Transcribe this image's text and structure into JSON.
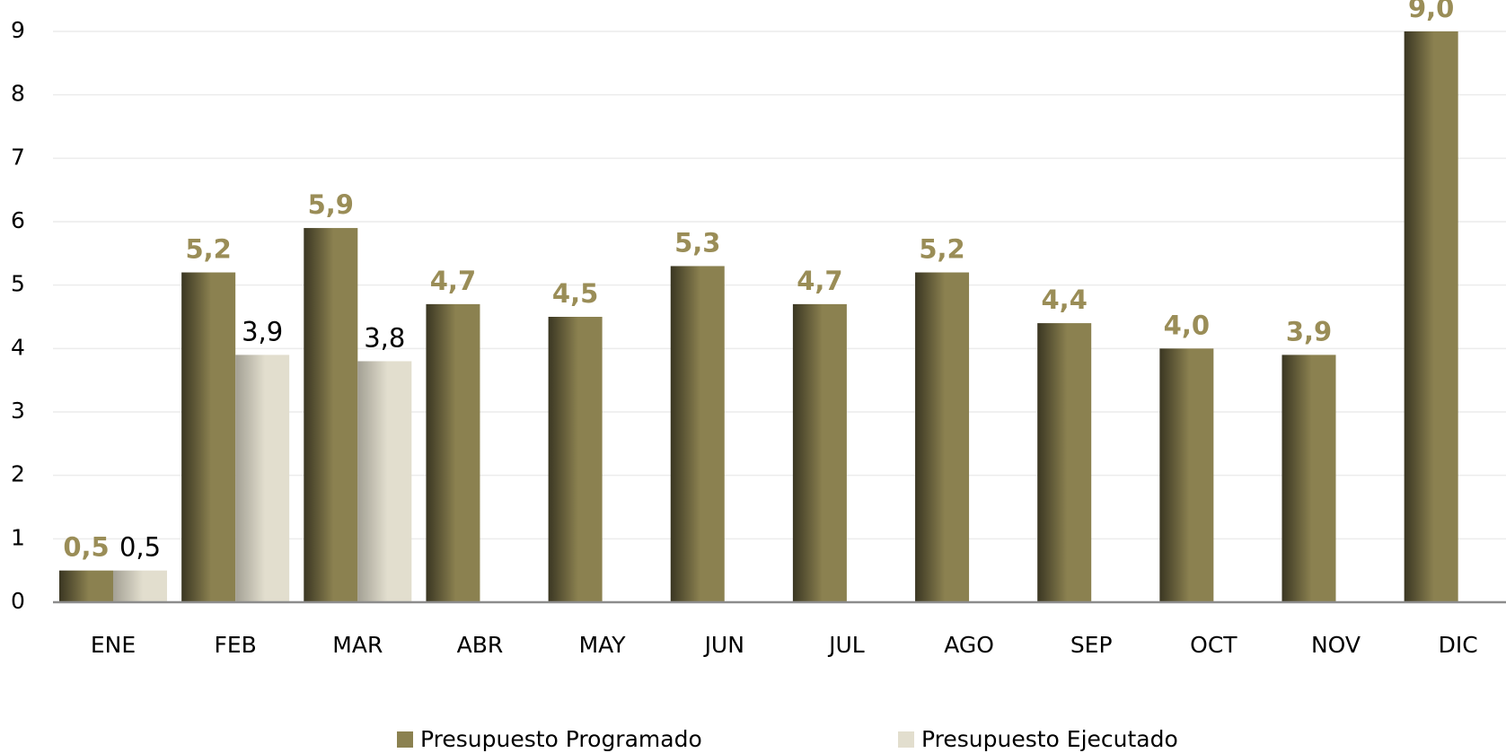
{
  "chart_data": {
    "type": "bar",
    "categories": [
      "ENE",
      "FEB",
      "MAR",
      "ABR",
      "MAY",
      "JUN",
      "JUL",
      "AGO",
      "SEP",
      "OCT",
      "NOV",
      "DIC"
    ],
    "series": [
      {
        "name": "Presupuesto Programado",
        "color": "#8b8150",
        "values": [
          0.5,
          5.2,
          5.9,
          4.7,
          4.5,
          5.3,
          4.7,
          5.2,
          4.4,
          4.0,
          3.9,
          9.0
        ],
        "value_labels": [
          "0,5",
          "5,2",
          "5,9",
          "4,7",
          "4,5",
          "5,3",
          "4,7",
          "5,2",
          "4,4",
          "4,0",
          "3,9",
          "9,0"
        ]
      },
      {
        "name": "Presupuesto Ejecutado",
        "color": "#e2dece",
        "values": [
          0.5,
          3.9,
          3.8,
          null,
          null,
          null,
          null,
          null,
          null,
          null,
          null,
          null
        ],
        "value_labels": [
          "0,5",
          "3,9",
          "3,8",
          null,
          null,
          null,
          null,
          null,
          null,
          null,
          null,
          null
        ]
      }
    ],
    "ylim": [
      0,
      9
    ],
    "yticks": [
      0,
      1,
      2,
      3,
      4,
      5,
      6,
      7,
      8,
      9
    ],
    "grid": true,
    "legend": "bottom"
  }
}
